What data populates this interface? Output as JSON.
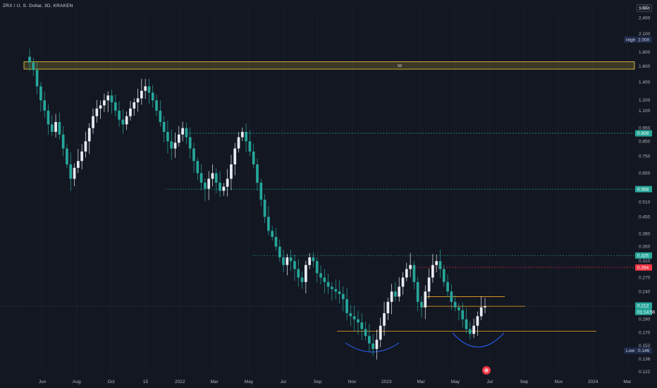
{
  "header": {
    "title": "ZRX / U. S. Dollar, 3D, KRAKEN",
    "currency": "USD"
  },
  "chart_data": {
    "type": "candlestick",
    "y_scale": "log",
    "ylim": [
      0.12,
      2.6
    ],
    "y_ticks": [
      "2.600",
      "2.400",
      "2.100",
      "2.000",
      "1.800",
      "1.600",
      "1.400",
      "1.200",
      "1.100",
      "0.950",
      "0.850",
      "0.750",
      "0.650",
      "0.568",
      "0.510",
      "0.450",
      "0.390",
      "0.350",
      "0.310",
      "0.270",
      "0.240",
      "0.210",
      "0.190",
      "0.170",
      "0.152",
      "0.136",
      "0.122"
    ],
    "x_ticks": [
      "Jun",
      "Aug",
      "Oct",
      "15",
      "2022",
      "Mar",
      "May",
      "Jul",
      "Sep",
      "Nov",
      "2023",
      "Mar",
      "May",
      "Jul",
      "Sep",
      "Nov",
      "2024",
      "Mar"
    ],
    "hline_high": {
      "label": "High",
      "value": "2.000"
    },
    "hline_low": {
      "label": "Low",
      "value": "0.146"
    },
    "price_badges": [
      {
        "value": "0.909",
        "color": "#26a69a"
      },
      {
        "value": "0.568",
        "color": "#26a69a"
      },
      {
        "value": "0.325",
        "color": "#26a69a"
      },
      {
        "value": "0.294",
        "color": "#f23645"
      },
      {
        "value": "0.212",
        "color": "#26a69a"
      },
      {
        "value": "01:14:56",
        "color": "#26a69a"
      }
    ],
    "resistance_zone": {
      "low": 1.56,
      "high": 1.66,
      "label": "58",
      "color": "#f5d242"
    },
    "dashed_levels": [
      {
        "value": 0.909,
        "color": "#26a69a"
      },
      {
        "value": 0.568,
        "color": "#26a69a"
      },
      {
        "value": 0.325,
        "color": "#26a69a"
      },
      {
        "value": 0.294,
        "color": "#f23645"
      }
    ],
    "support_lines": [
      {
        "value": 0.23,
        "color": "#f5a623"
      },
      {
        "value": 0.212,
        "color": "#f5a623"
      },
      {
        "value": 0.172,
        "color": "#f5a623"
      }
    ],
    "closes": [
      1.65,
      1.55,
      1.35,
      1.2,
      1.1,
      0.98,
      0.92,
      1.0,
      0.9,
      0.8,
      0.7,
      0.62,
      0.68,
      0.72,
      0.78,
      0.85,
      0.95,
      1.05,
      1.12,
      1.15,
      1.2,
      1.25,
      1.18,
      1.1,
      1.02,
      0.98,
      1.05,
      1.12,
      1.18,
      1.22,
      1.3,
      1.35,
      1.28,
      1.2,
      1.1,
      1.0,
      0.92,
      0.85,
      0.8,
      0.84,
      0.9,
      0.95,
      0.88,
      0.8,
      0.72,
      0.65,
      0.6,
      0.57,
      0.62,
      0.65,
      0.6,
      0.56,
      0.58,
      0.62,
      0.7,
      0.8,
      0.88,
      0.92,
      0.85,
      0.78,
      0.7,
      0.6,
      0.52,
      0.45,
      0.4,
      0.38,
      0.35,
      0.32,
      0.3,
      0.32,
      0.31,
      0.29,
      0.27,
      0.26,
      0.3,
      0.32,
      0.31,
      0.28,
      0.27,
      0.26,
      0.25,
      0.245,
      0.24,
      0.235,
      0.225,
      0.2,
      0.195,
      0.19,
      0.185,
      0.175,
      0.165,
      0.155,
      0.148,
      0.16,
      0.18,
      0.2,
      0.22,
      0.24,
      0.23,
      0.25,
      0.27,
      0.29,
      0.3,
      0.26,
      0.22,
      0.21,
      0.24,
      0.27,
      0.3,
      0.31,
      0.29,
      0.26,
      0.24,
      0.22,
      0.21,
      0.205,
      0.19,
      0.175,
      0.168,
      0.18,
      0.195,
      0.21,
      0.212
    ]
  }
}
